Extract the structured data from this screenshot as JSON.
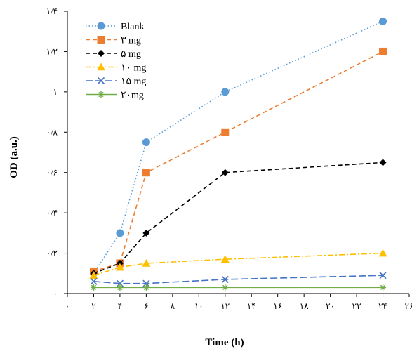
{
  "chart_data": {
    "type": "line",
    "title": "",
    "xlabel": "Time (h)",
    "ylabel": "OD (a.u.)",
    "xlim": [
      0,
      26
    ],
    "ylim": [
      0,
      1.4
    ],
    "x_ticks": [
      0,
      2,
      4,
      6,
      8,
      10,
      12,
      14,
      16,
      18,
      20,
      22,
      24,
      26
    ],
    "x_tick_labels": [
      "۰",
      "۲",
      "۴",
      "۶",
      "۸",
      "۱۰",
      "۱۲",
      "۱۴",
      "۱۶",
      "۱۸",
      "۲۰",
      "۲۲",
      "۲۴",
      "۲۶"
    ],
    "y_ticks": [
      0,
      0.2,
      0.4,
      0.6,
      0.8,
      1.0,
      1.2,
      1.4
    ],
    "y_tick_labels": [
      "۰",
      "۰/۲",
      "۰/۴",
      "۰/۶",
      "۰/۸",
      "۱",
      "۱/۲",
      "۱/۴"
    ],
    "grid": false,
    "legend_position": "top-left",
    "x": [
      2,
      4,
      6,
      12,
      24
    ],
    "series": [
      {
        "name": "Blank",
        "values": [
          0.1,
          0.3,
          0.75,
          1.0,
          1.35
        ],
        "color": "#5b9bd5",
        "dash": "1.5,3",
        "marker": "circle"
      },
      {
        "name": "۳ mg",
        "values": [
          0.11,
          0.15,
          0.6,
          0.8,
          1.2
        ],
        "color": "#ed7d31",
        "dash": "6,4",
        "marker": "square"
      },
      {
        "name": "۵ mg",
        "values": [
          0.1,
          0.15,
          0.3,
          0.6,
          0.65
        ],
        "color": "#000000",
        "dash": "6,4",
        "marker": "diamond"
      },
      {
        "name": "۱۰ mg",
        "values": [
          0.09,
          0.13,
          0.15,
          0.17,
          0.2
        ],
        "color": "#ffc000",
        "dash": "8,3,2,3",
        "marker": "triangle"
      },
      {
        "name": "۱۵ mg",
        "values": [
          0.06,
          0.05,
          0.05,
          0.07,
          0.09
        ],
        "color": "#4472c4",
        "dash": "10,4",
        "marker": "x"
      },
      {
        "name": "۲۰mg",
        "values": [
          0.03,
          0.03,
          0.03,
          0.03,
          0.03
        ],
        "color": "#70ad47",
        "dash": "",
        "marker": "star"
      }
    ]
  }
}
